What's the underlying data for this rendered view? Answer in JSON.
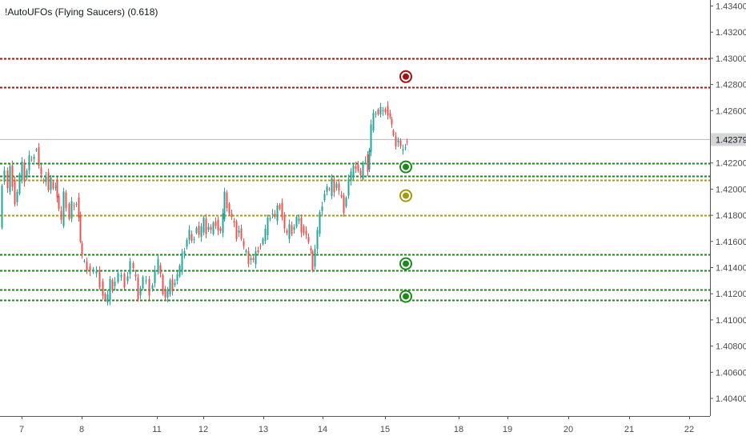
{
  "indicator": {
    "title": "!AutoUFOs (Flying Saucers) (0.618)"
  },
  "colors": {
    "up": "#26a69a",
    "down": "#ef5350",
    "red_level": "#a31212",
    "green_level": "#1b8a1b",
    "olive_level": "#a39a14",
    "axis": "#555555",
    "background": "#ffffff"
  },
  "chart_data": {
    "type": "candlestick",
    "y_axis": {
      "ticks": [
        "1.43400",
        "1.43200",
        "1.43000",
        "1.42800",
        "1.42600",
        "1.42400",
        "1.42200",
        "1.42000",
        "1.41800",
        "1.41600",
        "1.41400",
        "1.41200",
        "1.41000",
        "1.40800",
        "1.40600",
        "1.40400"
      ],
      "ylim": [
        1.4026,
        1.4352
      ]
    },
    "x_axis": {
      "ticks": [
        "7",
        "8",
        "11",
        "12",
        "13",
        "14",
        "15",
        "18",
        "19",
        "20",
        "21",
        "22"
      ]
    },
    "current_price": {
      "label": "1.42379",
      "value": 1.42379
    },
    "levels": [
      {
        "value": 1.43,
        "color": "red"
      },
      {
        "value": 1.4278,
        "color": "red"
      },
      {
        "value": 1.422,
        "color": "green"
      },
      {
        "value": 1.421,
        "color": "green"
      },
      {
        "value": 1.4207,
        "color": "olive"
      },
      {
        "value": 1.418,
        "color": "olive"
      },
      {
        "value": 1.415,
        "color": "green"
      },
      {
        "value": 1.4138,
        "color": "green"
      },
      {
        "value": 1.4123,
        "color": "green"
      },
      {
        "value": 1.4115,
        "color": "green"
      }
    ],
    "saucers": [
      {
        "value": 1.4286,
        "color": "red"
      },
      {
        "value": 1.4217,
        "color": "green"
      },
      {
        "value": 1.4195,
        "color": "olive"
      },
      {
        "value": 1.4143,
        "color": "green"
      },
      {
        "value": 1.4118,
        "color": "green"
      }
    ],
    "price_path": [
      [
        0,
        1.4168
      ],
      [
        3,
        1.4205
      ],
      [
        7,
        1.4215
      ],
      [
        10,
        1.42
      ],
      [
        13,
        1.4215
      ],
      [
        16,
        1.4205
      ],
      [
        19,
        1.419
      ],
      [
        22,
        1.4198
      ],
      [
        25,
        1.421
      ],
      [
        28,
        1.4218
      ],
      [
        31,
        1.4208
      ],
      [
        34,
        1.4215
      ],
      [
        37,
        1.4225
      ],
      [
        40,
        1.422
      ],
      [
        43,
        1.4228
      ],
      [
        46,
        1.4232
      ],
      [
        49,
        1.4218
      ],
      [
        52,
        1.421
      ],
      [
        55,
        1.4203
      ],
      [
        58,
        1.4212
      ],
      [
        61,
        1.42
      ],
      [
        64,
        1.4208
      ],
      [
        67,
        1.4198
      ],
      [
        70,
        1.4205
      ],
      [
        72,
        1.4195
      ],
      [
        74,
        1.4185
      ],
      [
        77,
        1.4175
      ],
      [
        80,
        1.4195
      ],
      [
        84,
        1.4188
      ],
      [
        87,
        1.4178
      ],
      [
        90,
        1.419
      ],
      [
        93,
        1.4185
      ],
      [
        96,
        1.4192
      ],
      [
        99,
        1.418
      ],
      [
        101,
        1.416
      ],
      [
        103,
        1.4148
      ],
      [
        106,
        1.4142
      ],
      [
        110,
        1.414
      ],
      [
        114,
        1.4138
      ],
      [
        118,
        1.4138
      ],
      [
        122,
        1.4135
      ],
      [
        126,
        1.4128
      ],
      [
        129,
        1.412
      ],
      [
        132,
        1.4115
      ],
      [
        135,
        1.4118
      ],
      [
        138,
        1.4128
      ],
      [
        141,
        1.4125
      ],
      [
        145,
        1.413
      ],
      [
        149,
        1.4135
      ],
      [
        153,
        1.4132
      ],
      [
        157,
        1.4128
      ],
      [
        160,
        1.4135
      ],
      [
        164,
        1.4145
      ],
      [
        167,
        1.4138
      ],
      [
        170,
        1.413
      ],
      [
        173,
        1.4118
      ],
      [
        176,
        1.4125
      ],
      [
        180,
        1.4132
      ],
      [
        184,
        1.4128
      ],
      [
        188,
        1.4122
      ],
      [
        191,
        1.4128
      ],
      [
        195,
        1.4138
      ],
      [
        198,
        1.4145
      ],
      [
        201,
        1.4132
      ],
      [
        204,
        1.4122
      ],
      [
        207,
        1.4118
      ],
      [
        210,
        1.4122
      ],
      [
        213,
        1.4128
      ],
      [
        216,
        1.4125
      ],
      [
        219,
        1.413
      ],
      [
        222,
        1.4135
      ],
      [
        225,
        1.414
      ],
      [
        228,
        1.4148
      ],
      [
        231,
        1.4155
      ],
      [
        234,
        1.4162
      ],
      [
        237,
        1.4168
      ],
      [
        240,
        1.4158
      ],
      [
        243,
        1.4165
      ],
      [
        246,
        1.4172
      ],
      [
        249,
        1.4165
      ],
      [
        252,
        1.417
      ],
      [
        255,
        1.4175
      ],
      [
        258,
        1.4168
      ],
      [
        261,
        1.4172
      ],
      [
        264,
        1.4168
      ],
      [
        267,
        1.4172
      ],
      [
        270,
        1.4175
      ],
      [
        273,
        1.417
      ],
      [
        276,
        1.4168
      ],
      [
        279,
        1.418
      ],
      [
        281,
        1.4195
      ],
      [
        284,
        1.4188
      ],
      [
        287,
        1.4182
      ],
      [
        290,
        1.4178
      ],
      [
        293,
        1.4172
      ],
      [
        296,
        1.4165
      ],
      [
        299,
        1.417
      ],
      [
        302,
        1.4162
      ],
      [
        305,
        1.4155
      ],
      [
        308,
        1.415
      ],
      [
        311,
        1.4145
      ],
      [
        314,
        1.4148
      ],
      [
        317,
        1.4145
      ],
      [
        320,
        1.415
      ],
      [
        323,
        1.4155
      ],
      [
        326,
        1.4158
      ],
      [
        329,
        1.4162
      ],
      [
        332,
        1.4168
      ],
      [
        335,
        1.4175
      ],
      [
        338,
        1.418
      ],
      [
        341,
        1.4182
      ],
      [
        344,
        1.4178
      ],
      [
        347,
        1.4185
      ],
      [
        350,
        1.4188
      ],
      [
        353,
        1.418
      ],
      [
        356,
        1.417
      ],
      [
        359,
        1.4165
      ],
      [
        362,
        1.417
      ],
      [
        365,
        1.4168
      ],
      [
        368,
        1.4172
      ],
      [
        371,
        1.4178
      ],
      [
        374,
        1.4175
      ],
      [
        377,
        1.417
      ],
      [
        380,
        1.4168
      ],
      [
        383,
        1.4165
      ],
      [
        386,
        1.4158
      ],
      [
        389,
        1.415
      ],
      [
        391,
        1.414
      ],
      [
        394,
        1.4155
      ],
      [
        397,
        1.4168
      ],
      [
        400,
        1.418
      ],
      [
        403,
        1.419
      ],
      [
        406,
        1.4198
      ],
      [
        409,
        1.4202
      ],
      [
        412,
        1.4198
      ],
      [
        415,
        1.4205
      ],
      [
        418,
        1.42
      ],
      [
        421,
        1.4205
      ],
      [
        424,
        1.4198
      ],
      [
        427,
        1.4192
      ],
      [
        430,
        1.4185
      ],
      [
        433,
        1.4195
      ],
      [
        436,
        1.4208
      ],
      [
        439,
        1.4212
      ],
      [
        442,
        1.4215
      ],
      [
        445,
        1.4218
      ],
      [
        448,
        1.4215
      ],
      [
        451,
        1.421
      ],
      [
        454,
        1.4218
      ],
      [
        457,
        1.4225
      ],
      [
        460,
        1.4215
      ],
      [
        462,
        1.423
      ],
      [
        464,
        1.4248
      ],
      [
        467,
        1.4255
      ],
      [
        470,
        1.426
      ],
      [
        473,
        1.4258
      ],
      [
        476,
        1.4262
      ],
      [
        479,
        1.4258
      ],
      [
        482,
        1.4262
      ],
      [
        485,
        1.4258
      ],
      [
        488,
        1.4255
      ],
      [
        490,
        1.4248
      ],
      [
        492,
        1.4238
      ],
      [
        495,
        1.4235
      ],
      [
        498,
        1.4238
      ],
      [
        501,
        1.4232
      ],
      [
        504,
        1.4228
      ],
      [
        507,
        1.4235
      ],
      [
        508,
        1.42379
      ]
    ]
  }
}
